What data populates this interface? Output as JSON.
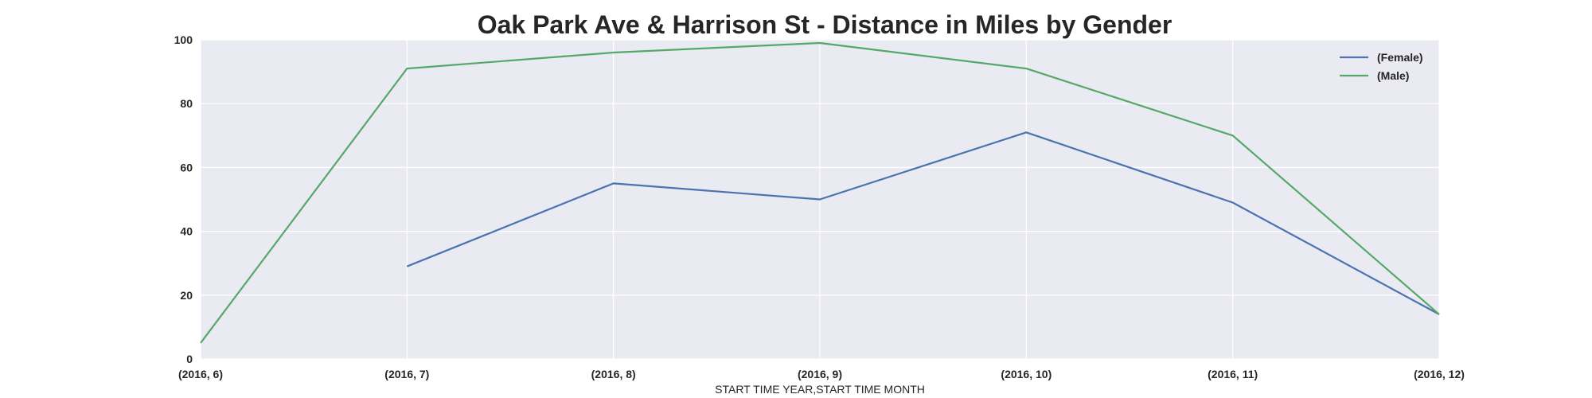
{
  "chart_data": {
    "type": "line",
    "title": "Oak Park Ave & Harrison St - Distance in Miles by Gender",
    "xlabel": "START TIME YEAR,START TIME MONTH",
    "ylabel": "",
    "categories": [
      "(2016, 6)",
      "(2016, 7)",
      "(2016, 8)",
      "(2016, 9)",
      "(2016, 10)",
      "(2016, 11)",
      "(2016, 12)"
    ],
    "ylim": [
      0,
      100
    ],
    "yticks": [
      "0",
      "20",
      "40",
      "60",
      "80",
      "100"
    ],
    "grid": true,
    "legend_position": "top-right",
    "series": [
      {
        "name": "(Female)",
        "color": "#4c72b0",
        "values": [
          null,
          29,
          55,
          50,
          71,
          49,
          14
        ]
      },
      {
        "name": "(Male)",
        "color": "#55a868",
        "values": [
          5,
          91,
          96,
          99,
          91,
          70,
          14
        ]
      }
    ]
  }
}
